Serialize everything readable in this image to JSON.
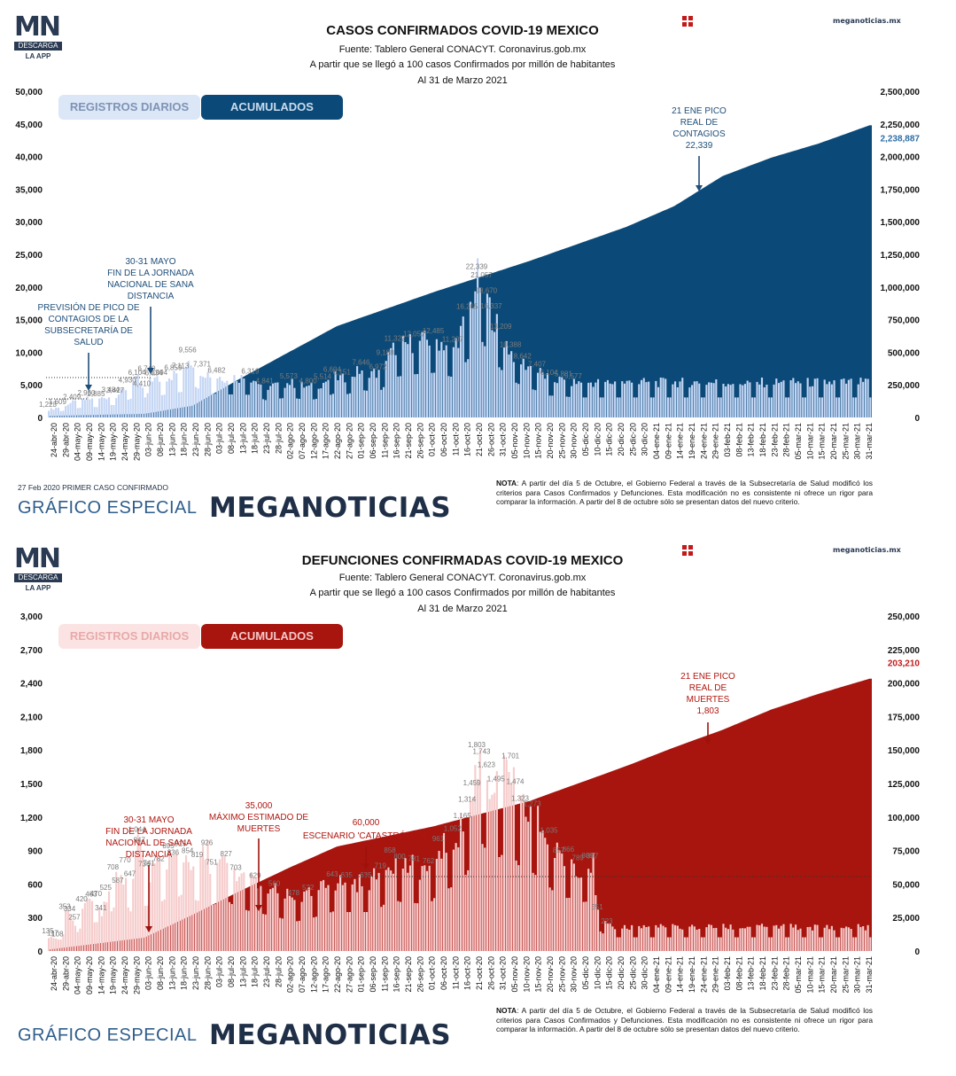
{
  "panels": [
    {
      "logo": {
        "mn": "MN",
        "descarga": "DESCARGA",
        "app": "LA APP"
      },
      "title": "CASOS CONFIRMADOS COVID-19 MEXICO",
      "source": "Fuente: Tablero General CONACYT. Coronavirus.gob.mx",
      "subtitle": "A partir que se llegó a 100 casos Confirmados por millón de habitantes",
      "date": "Al 31 de Marzo 2021",
      "site": "meganoticias.mx",
      "tabs": {
        "daily": "REGISTROS DIARIOS",
        "cumulative": "ACUMULADOS"
      },
      "first_case": "27 Feb 2020 PRIMER CASO CONFIRMADO",
      "brand_left": "GRÁFICO ESPECIAL",
      "brand_right": "MEGANOTICIAS",
      "note_label": "NOTA",
      "note": ": A partir del día 5 de Octubre, el Gobierno Federal a través de la Subsecretaría de Salud modificó los criterios para Casos Confirmados y Defunciones. Esta modificación no es consistente ni ofrece un rigor para comparar la información. A partir del 8 de octubre sólo se presentan datos del nuevo criterio.",
      "colors": {
        "accent": "#0b4a78",
        "light": "#c4d6f4",
        "pill_light": "#dbe6f7",
        "text_dark": "#1f4e79"
      }
    },
    {
      "logo": {
        "mn": "MN",
        "descarga": "DESCARGA",
        "app": "LA APP"
      },
      "title": "DEFUNCIONES CONFIRMADAS COVID-19 MEXICO",
      "source": "Fuente: Tablero General CONACYT. Coronavirus.gob.mx",
      "subtitle": "A partir que se llegó a 100 casos Confirmados por millón de habitantes",
      "date": "Al 31 de Marzo 2021",
      "site": "meganoticias.mx",
      "tabs": {
        "daily": "REGISTROS DIARIOS",
        "cumulative": "ACUMULADOS"
      },
      "brand_left": "GRÁFICO ESPECIAL",
      "brand_right": "MEGANOTICIAS",
      "note_label": "NOTA",
      "note": ": A partir del día 5 de Octubre, el Gobierno Federal a través de la Subsecretaría de Salud modificó los criterios para Casos Confirmados y Defunciones. Esta modificación no es consistente ni ofrece un rigor para comparar la información. A partir del 8 de octubre sólo se presentan datos del nuevo criterio.",
      "colors": {
        "accent": "#a8140e",
        "light": "#f6cccc",
        "pill_light": "#fbe3e3",
        "text_dark": "#b0160f"
      }
    }
  ],
  "chart_data": [
    {
      "type": "bar",
      "title": "CASOS CONFIRMADOS COVID-19 MEXICO",
      "x_ticks": [
        "24-abr-20",
        "29-abr-20",
        "04-may-20",
        "09-may-20",
        "14-may-20",
        "19-may-20",
        "24-may-20",
        "29-may-20",
        "03-jun-20",
        "08-jun-20",
        "13-jun-20",
        "18-jun-20",
        "23-jun-20",
        "28-jun-20",
        "03-jul-20",
        "08-jul-20",
        "13-jul-20",
        "18-jul-20",
        "23-jul-20",
        "28-jul-20",
        "02-ago-20",
        "07-ago-20",
        "12-ago-20",
        "17-ago-20",
        "22-ago-20",
        "27-ago-20",
        "01-sep-20",
        "06-sep-20",
        "11-sep-20",
        "16-sep-20",
        "21-sep-20",
        "26-sep-20",
        "01-oct-20",
        "06-oct-20",
        "11-oct-20",
        "16-oct-20",
        "21-oct-20",
        "26-oct-20",
        "31-oct-20",
        "05-nov-20",
        "10-nov-20",
        "15-nov-20",
        "20-nov-20",
        "25-nov-20",
        "30-nov-20",
        "05-dic-20",
        "10-dic-20",
        "15-dic-20",
        "20-dic-20",
        "25-dic-20",
        "30-dic-20",
        "04-ene-21",
        "09-ene-21",
        "14-ene-21",
        "19-ene-21",
        "24-ene-21",
        "29-ene-21",
        "03-feb-21",
        "08-feb-21",
        "13-feb-21",
        "18-feb-21",
        "23-feb-21",
        "28-feb-21",
        "05-mar-21",
        "10-mar-21",
        "15-mar-21",
        "20-mar-21",
        "25-mar-21",
        "30-mar-21",
        "31-mar-21"
      ],
      "y_left": {
        "ticks": [
          "0",
          "5,000",
          "10,000",
          "15,000",
          "20,000",
          "25,000",
          "30,000",
          "35,000",
          "40,000",
          "45,000",
          "50,000"
        ],
        "range": [
          0,
          50000
        ]
      },
      "y_right": {
        "ticks": [
          "0",
          "250,000",
          "500,000",
          "750,000",
          "1,000,000",
          "1,250,000",
          "1,500,000",
          "1,750,000",
          "2,000,000",
          "2,250,000",
          "2,500,000"
        ],
        "range": [
          0,
          2500000
        ]
      },
      "series": [
        {
          "name": "REGISTROS DIARIOS",
          "anchors": [
            [
              0,
              1223
            ],
            [
              4,
              1609
            ],
            [
              10,
              2409
            ],
            [
              16,
              2960
            ],
            [
              20,
              2885
            ],
            [
              26,
              3484
            ],
            [
              28,
              3427
            ],
            [
              33,
              4930
            ],
            [
              37,
              6104
            ],
            [
              39,
              4410
            ],
            [
              41,
              6740
            ],
            [
              44,
              6034
            ],
            [
              46,
              6094
            ],
            [
              52,
              6859
            ],
            [
              55,
              7113
            ],
            [
              58,
              9556
            ],
            [
              64,
              7371
            ],
            [
              70,
              6482
            ],
            [
              84,
              6319
            ],
            [
              90,
              4841
            ],
            [
              100,
              5573
            ],
            [
              108,
              4800
            ],
            [
              114,
              5514
            ],
            [
              118,
              6604
            ],
            [
              122,
              6151
            ],
            [
              130,
              7646
            ],
            [
              137,
              6972
            ],
            [
              140,
              9188
            ],
            [
              144,
              11322
            ],
            [
              152,
              12057
            ],
            [
              160,
              12485
            ],
            [
              168,
              11207
            ],
            [
              174,
              16265
            ],
            [
              178,
              22339
            ],
            [
              180,
              21057
            ],
            [
              182,
              18670
            ],
            [
              184,
              16337
            ],
            [
              188,
              13209
            ],
            [
              192,
              10388
            ],
            [
              197,
              8642
            ],
            [
              203,
              7407
            ],
            [
              208,
              6104
            ],
            [
              214,
              5881
            ],
            [
              218,
              5577
            ]
          ],
          "value_labels": [
            "1,223",
            "1,609",
            "2,409",
            "2,960",
            "2,885",
            "3,484",
            "3,427",
            "4,930",
            "6,104",
            "4,410",
            "6,740",
            "6,034",
            "6,094",
            "6,859",
            "7,113",
            "9,556",
            "7,371",
            "6,482",
            "6,319",
            "4,841",
            "5,573",
            "4,800",
            "5,514",
            "6,604",
            "6,151",
            "7,646",
            "6,972",
            "9,188",
            "11,322",
            "12,057",
            "12,485",
            "11,207",
            "16,265",
            "22,339",
            "21,057",
            "18,670",
            "16,337",
            "13,209",
            "10,388",
            "8,642",
            "7,407",
            "6,104",
            "5,881",
            "5,577"
          ]
        },
        {
          "name": "ACUMULADOS",
          "anchors": [
            [
              0,
              12000
            ],
            [
              40,
              28000
            ],
            [
              60,
              90000
            ],
            [
              80,
              300000
            ],
            [
              120,
              700000
            ],
            [
              160,
              960000
            ],
            [
              200,
              1200000
            ],
            [
              240,
              1460000
            ],
            [
              260,
              1620000
            ],
            [
              280,
              1850000
            ],
            [
              300,
              1990000
            ],
            [
              320,
              2100000
            ],
            [
              341,
              2238887
            ]
          ],
          "end_label": "2,238,887"
        }
      ],
      "annotations": [
        {
          "text": [
            "21 ENE PICO",
            "REAL DE",
            "CONTAGIOS",
            "22,339"
          ]
        },
        {
          "text": [
            "30-31 MAYO",
            "FIN DE LA JORNADA",
            "NACIONAL DE SANA",
            "DISTANCIA"
          ]
        },
        {
          "text": [
            "PREVISIÓN DE PICO DE",
            "CONTAGIOS DE LA",
            "SUBSECRETARÍA DE",
            "SALUD"
          ]
        }
      ]
    },
    {
      "type": "bar",
      "title": "DEFUNCIONES CONFIRMADAS COVID-19 MEXICO",
      "x_ticks": [
        "24-abr-20",
        "29-abr-20",
        "04-may-20",
        "09-may-20",
        "14-may-20",
        "19-may-20",
        "24-may-20",
        "29-may-20",
        "03-jun-20",
        "08-jun-20",
        "13-jun-20",
        "18-jun-20",
        "23-jun-20",
        "28-jun-20",
        "03-jul-20",
        "08-jul-20",
        "13-jul-20",
        "18-jul-20",
        "23-jul-20",
        "28-jul-20",
        "02-ago-20",
        "07-ago-20",
        "12-ago-20",
        "17-ago-20",
        "22-ago-20",
        "27-ago-20",
        "01-sep-20",
        "06-sep-20",
        "11-sep-20",
        "16-sep-20",
        "21-sep-20",
        "26-sep-20",
        "01-oct-20",
        "06-oct-20",
        "11-oct-20",
        "16-oct-20",
        "21-oct-20",
        "26-oct-20",
        "31-oct-20",
        "05-nov-20",
        "10-nov-20",
        "15-nov-20",
        "20-nov-20",
        "25-nov-20",
        "30-nov-20",
        "05-dic-20",
        "10-dic-20",
        "15-dic-20",
        "20-dic-20",
        "25-dic-20",
        "30-dic-20",
        "04-ene-21",
        "09-ene-21",
        "14-ene-21",
        "19-ene-21",
        "24-ene-21",
        "29-ene-21",
        "03-feb-21",
        "08-feb-21",
        "13-feb-21",
        "18-feb-21",
        "23-feb-21",
        "28-feb-21",
        "05-mar-21",
        "10-mar-21",
        "15-mar-21",
        "20-mar-21",
        "25-mar-21",
        "30-mar-21",
        "31-mar-21"
      ],
      "y_left": {
        "ticks": [
          "0",
          "300",
          "600",
          "900",
          "1,200",
          "1,500",
          "1,800",
          "2,100",
          "2,400",
          "2,700",
          "3,000"
        ],
        "range": [
          0,
          3000
        ]
      },
      "y_right": {
        "ticks": [
          "0",
          "25,000",
          "50,000",
          "75,000",
          "100,000",
          "125,000",
          "150,000",
          "175,000",
          "200,000",
          "225,000",
          "250,000"
        ],
        "range": [
          0,
          250000
        ]
      },
      "series": [
        {
          "name": "REGISTROS DIARIOS",
          "anchors": [
            [
              0,
              135
            ],
            [
              2,
              117
            ],
            [
              4,
              108
            ],
            [
              7,
              353
            ],
            [
              9,
              334
            ],
            [
              11,
              257
            ],
            [
              14,
              420
            ],
            [
              18,
              463
            ],
            [
              20,
              470
            ],
            [
              22,
              341
            ],
            [
              24,
              525
            ],
            [
              27,
              708
            ],
            [
              29,
              587
            ],
            [
              32,
              770
            ],
            [
              34,
              647
            ],
            [
              37,
              1044
            ],
            [
              38,
              947
            ],
            [
              40,
              736
            ],
            [
              42,
              741
            ],
            [
              46,
              782
            ],
            [
              50,
              895
            ],
            [
              52,
              836
            ],
            [
              55,
              915
            ],
            [
              58,
              854
            ],
            [
              62,
              819
            ],
            [
              66,
              926
            ],
            [
              68,
              751
            ],
            [
              74,
              827
            ],
            [
              78,
              703
            ],
            [
              86,
              629
            ],
            [
              94,
              560
            ],
            [
              102,
              478
            ],
            [
              108,
              522
            ],
            [
              118,
              643
            ],
            [
              124,
              635
            ],
            [
              132,
              635
            ],
            [
              138,
              719
            ],
            [
              142,
              858
            ],
            [
              146,
              800
            ],
            [
              152,
              781
            ],
            [
              158,
              762
            ],
            [
              162,
              961
            ],
            [
              168,
              1052
            ],
            [
              172,
              1165
            ],
            [
              174,
              1314
            ],
            [
              176,
              1459
            ],
            [
              178,
              1803
            ],
            [
              180,
              1743
            ],
            [
              182,
              1623
            ],
            [
              186,
              1495
            ],
            [
              192,
              1701
            ],
            [
              194,
              1474
            ],
            [
              196,
              1323
            ],
            [
              201,
              1273
            ],
            [
              208,
              1035
            ],
            [
              212,
              857
            ],
            [
              216,
              866
            ],
            [
              220,
              789
            ],
            [
              224,
              809
            ],
            [
              226,
              807
            ],
            [
              228,
              351
            ],
            [
              232,
              223
            ]
          ],
          "value_labels": [
            "135",
            "117",
            "108",
            "353",
            "334",
            "257",
            "420",
            "463",
            "470",
            "341",
            "525",
            "708",
            "587",
            "770",
            "647",
            "1,044",
            "947",
            "736",
            "741",
            "782",
            "895",
            "836",
            "915",
            "854",
            "819",
            "926",
            "751",
            "827",
            "703",
            "629",
            "560",
            "478",
            "522",
            "643",
            "635",
            "635",
            "719",
            "858",
            "800",
            "781",
            "762",
            "961",
            "1,052",
            "1,165",
            "1,314",
            "1,459",
            "1,803",
            "1,743",
            "1,623",
            "1,495",
            "1,701",
            "1,474",
            "1,323",
            "1,273",
            "1,035",
            "857",
            "866",
            "789",
            "809",
            "807",
            "351",
            "223"
          ]
        },
        {
          "name": "ACUMULADOS",
          "anchors": [
            [
              0,
              1000
            ],
            [
              40,
              10000
            ],
            [
              60,
              27000
            ],
            [
              80,
              45000
            ],
            [
              100,
              62000
            ],
            [
              120,
              78000
            ],
            [
              160,
              93000
            ],
            [
              200,
              112000
            ],
            [
              240,
              138000
            ],
            [
              260,
              152000
            ],
            [
              280,
              165000
            ],
            [
              300,
              180000
            ],
            [
              320,
              192000
            ],
            [
              341,
              203210
            ]
          ],
          "end_label": "203,210"
        }
      ],
      "annotations": [
        {
          "text": [
            "21 ENE PICO",
            "REAL DE",
            "MUERTES",
            "1,803"
          ]
        },
        {
          "text": [
            "30-31 MAYO",
            "FIN DE LA JORNADA",
            "NACIONAL DE SANA",
            "DISTANCIA"
          ]
        },
        {
          "text": [
            "35,000",
            "MÁXIMO ESTIMADO DE",
            "MUERTES"
          ]
        },
        {
          "text": [
            "60,000",
            "ESCENARIO 'CATASTRÓFICO'"
          ]
        }
      ]
    }
  ]
}
